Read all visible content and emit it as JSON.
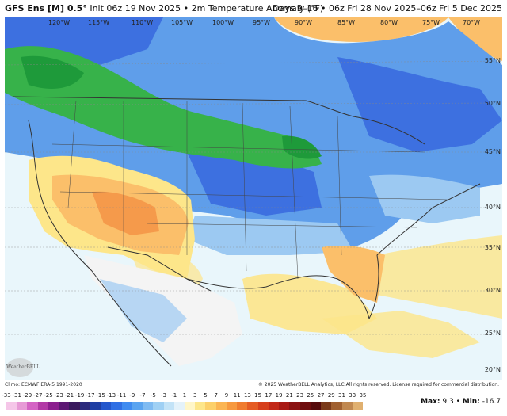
{
  "header": {
    "model": "GFS Ens [M] 0.5°",
    "init": "Init 06z 19 Nov 2025",
    "field": "2m Temperature Anomaly (°F)",
    "valid": "Days 9–16 • 06z Fri 28 Nov 2025–06z Fri 5 Dec 2025"
  },
  "map": {
    "longitudes": [
      "120°W",
      "115°W",
      "110°W",
      "105°W",
      "100°W",
      "95°W",
      "90°W",
      "85°W",
      "80°W",
      "75°W",
      "70°W"
    ],
    "latitudes": [
      "55°N",
      "50°N",
      "45°N",
      "40°N",
      "35°N",
      "30°N",
      "25°N",
      "20°N"
    ],
    "colors": {
      "ocean": "#e9f6fb",
      "land_neutral": "#f4f4f4",
      "cold_light": "#9cc9f2",
      "cold_mid": "#5f9eea",
      "cold_deep": "#3d70e0",
      "very_cold_green": "#37b24a",
      "green_dark": "#1e9a3a",
      "warm_light": "#fde68a",
      "warm_mid": "#fbbf6a",
      "warm_deep": "#f59a4b",
      "border": "#333333"
    }
  },
  "footer": {
    "climo": "Climo: ECMWF ERA-5 1991-2020",
    "copyright": "© 2025 WeatherBELL Analytics, LLC All rights reserved. License required for commercial distribution.",
    "logo": "WeatherBELL",
    "max_label": "Max:",
    "max_value": "9.3",
    "min_label": "Min:",
    "min_value": "-16.7",
    "separator": "•"
  },
  "colorbar": {
    "ticks": [
      "-33",
      "-31",
      "-29",
      "-27",
      "-25",
      "-23",
      "-21",
      "-19",
      "-17",
      "-15",
      "-13",
      "-11",
      "-9",
      "-7",
      "-5",
      "-3",
      "-1",
      "1",
      "3",
      "5",
      "7",
      "9",
      "11",
      "13",
      "15",
      "17",
      "19",
      "21",
      "23",
      "25",
      "27",
      "29",
      "31",
      "33",
      "35"
    ],
    "colors": [
      "#f5c6e8",
      "#e79ad6",
      "#d463c4",
      "#b23aa6",
      "#8b1f8e",
      "#5c1873",
      "#3a1a5e",
      "#2b2a7c",
      "#1f3fa4",
      "#2457cc",
      "#2f6fe4",
      "#3f8bf0",
      "#5aa4f0",
      "#7fbbf2",
      "#9fd0f4",
      "#c3e3f7",
      "#e4f2fa",
      "#fff6c8",
      "#fde68a",
      "#fcd06a",
      "#fbb553",
      "#f7993f",
      "#f07c2f",
      "#e55c24",
      "#d63f1c",
      "#c22818",
      "#a81914",
      "#8a1212",
      "#6e0d0e",
      "#560b0c",
      "#7a3a1a",
      "#a06030",
      "#c08850",
      "#e0b070"
    ]
  }
}
